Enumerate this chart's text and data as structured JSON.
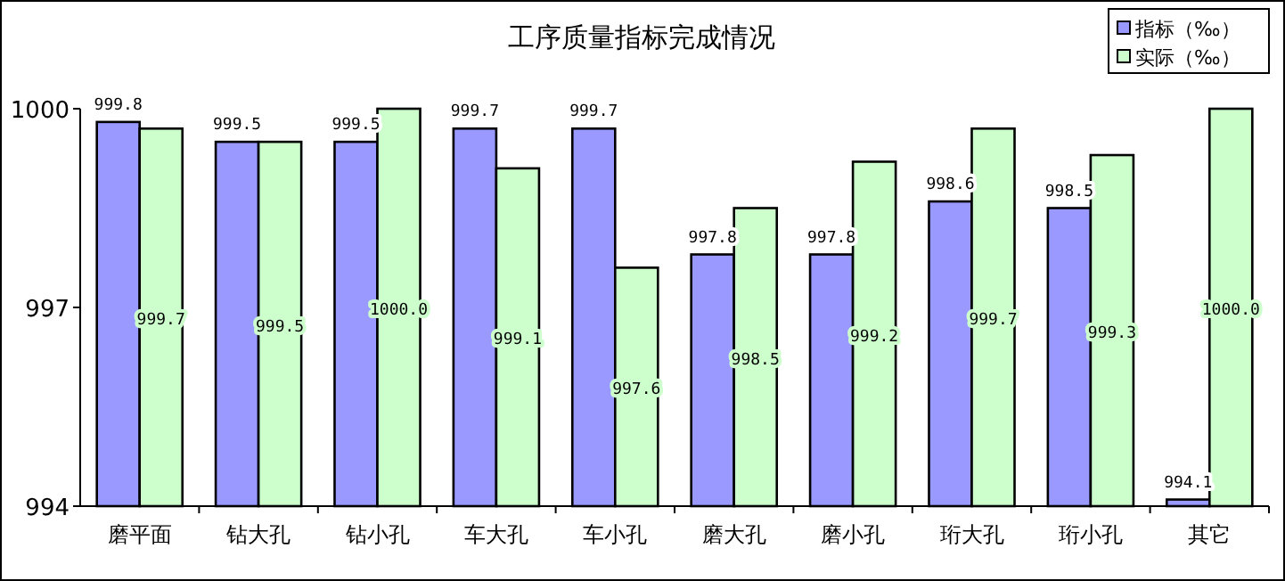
{
  "chart_data": {
    "type": "bar",
    "title": "工序质量指标完成情况",
    "categories": [
      "磨平面",
      "钻大孔",
      "钻小孔",
      "车大孔",
      "车小孔",
      "磨大孔",
      "磨小孔",
      "珩大孔",
      "珩小孔",
      "其它"
    ],
    "series": [
      {
        "name": "指标（‰）",
        "color": "#9999ff",
        "values": [
          999.8,
          999.5,
          999.5,
          999.7,
          999.7,
          997.8,
          997.8,
          998.6,
          998.5,
          994.1
        ],
        "value_labels": [
          "999.8",
          "999.5",
          "999.5",
          "999.7",
          "999.7",
          "997.8",
          "997.8",
          "998.6",
          "998.5",
          "994.1"
        ]
      },
      {
        "name": "实际（‰）",
        "color": "#ccffcc",
        "values": [
          999.7,
          999.5,
          1000.0,
          999.1,
          997.6,
          998.5,
          999.2,
          999.7,
          999.3,
          1000.0
        ],
        "value_labels": [
          "999.7",
          "999.5",
          "1000.0",
          "999.1",
          "997.6",
          "998.5",
          "999.2",
          "999.7",
          "999.3",
          "1000.0"
        ]
      }
    ],
    "ylim": [
      994,
      1000
    ],
    "yticks": [
      994,
      997,
      1000
    ],
    "legend": "top right",
    "grid": false
  }
}
